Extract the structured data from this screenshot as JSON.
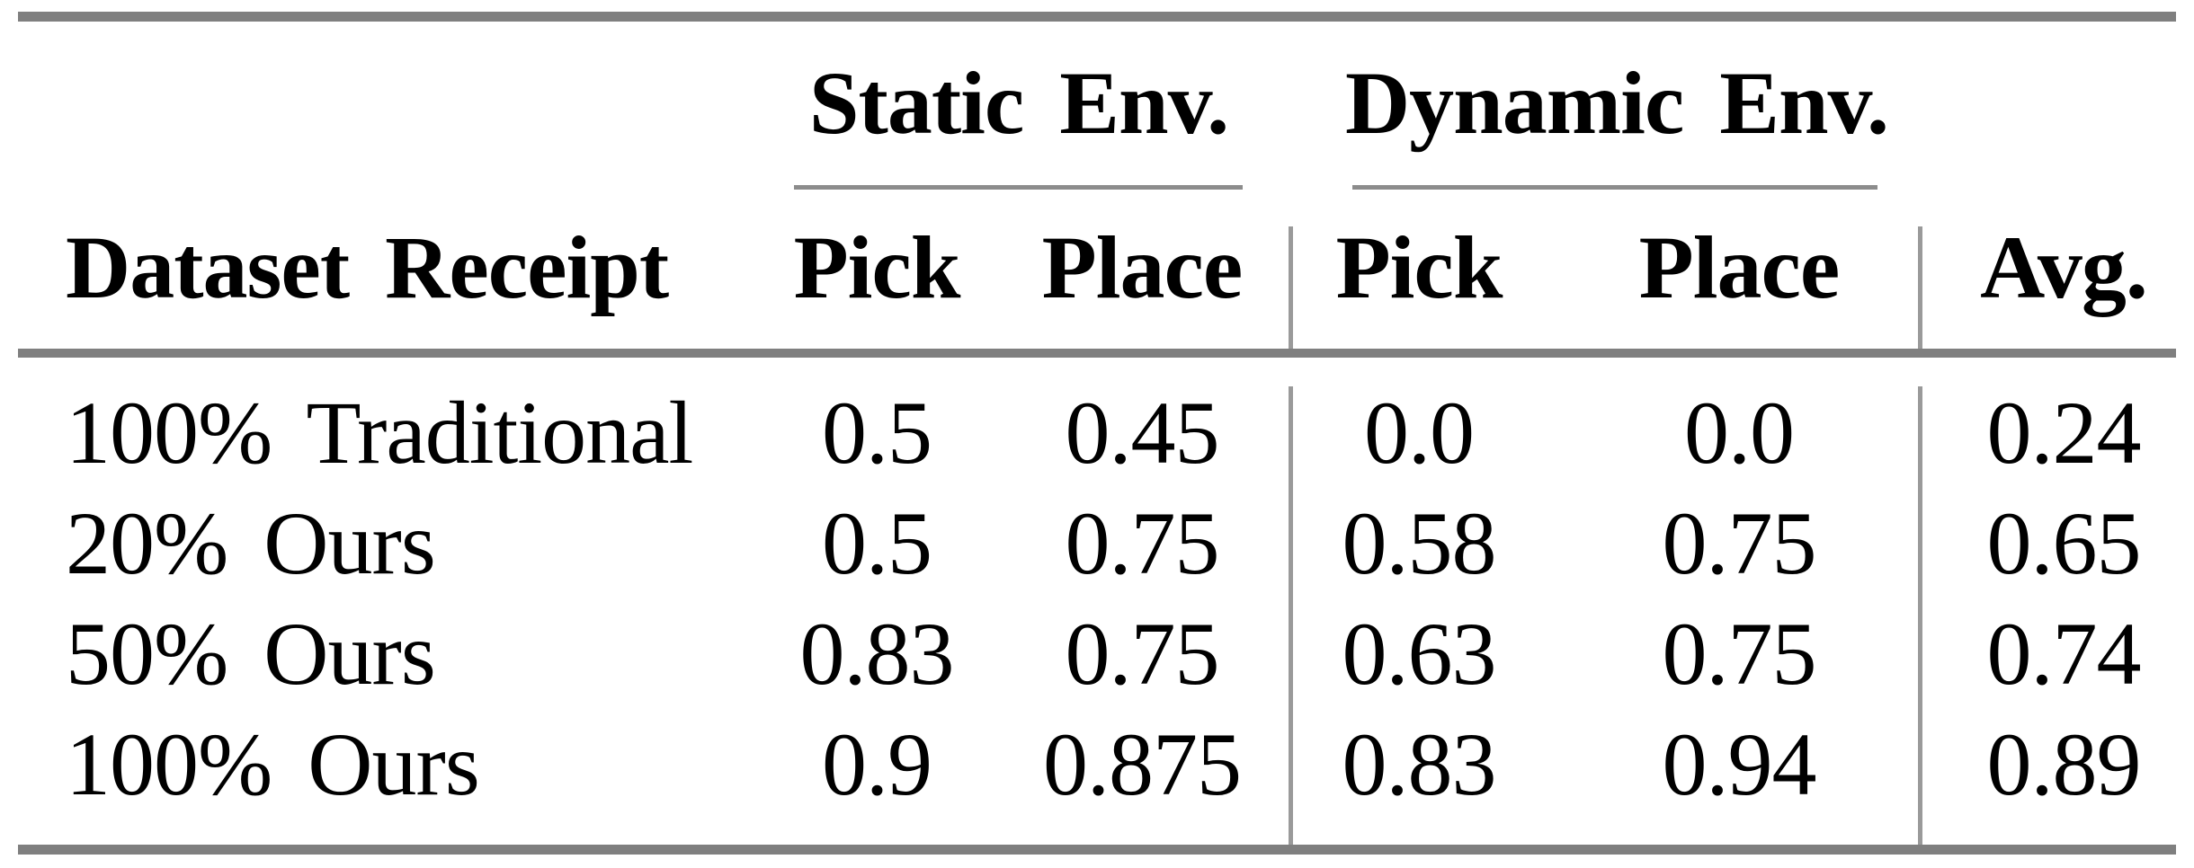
{
  "colors": {
    "rule_thick_gray": "#7f7f7f",
    "rule_thin_gray": "#8c8c8c",
    "divider_gray": "#9a9a9a",
    "text": "#000000",
    "background": "#ffffff"
  },
  "table": {
    "row_header": "Dataset Receipt",
    "avg_header": "Avg.",
    "column_groups": [
      {
        "label": "Static Env.",
        "columns": [
          "Pick",
          "Place"
        ]
      },
      {
        "label": "Dynamic Env.",
        "columns": [
          "Pick",
          "Place"
        ]
      }
    ],
    "rows": [
      {
        "label": "100% Traditional",
        "values": [
          "0.5",
          "0.45",
          "0.0",
          "0.0",
          "0.24"
        ]
      },
      {
        "label": "20% Ours",
        "values": [
          "0.5",
          "0.75",
          "0.58",
          "0.75",
          "0.65"
        ]
      },
      {
        "label": "50% Ours",
        "values": [
          "0.83",
          "0.75",
          "0.63",
          "0.75",
          "0.74"
        ]
      },
      {
        "label": "100% Ours",
        "values": [
          "0.9",
          "0.875",
          "0.83",
          "0.94",
          "0.89"
        ]
      }
    ]
  }
}
